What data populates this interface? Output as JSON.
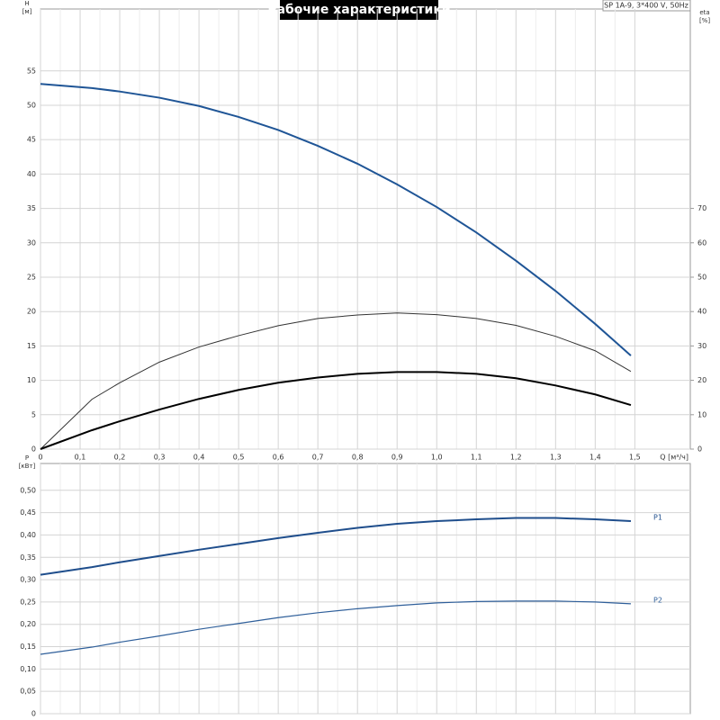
{
  "chart_data": [
    {
      "type": "line",
      "title": "Рабочие характеристики",
      "note": "SP 1A-9, 3*400 V, 50Hz",
      "ylabel": [
        "H",
        "[м]"
      ],
      "y2label": [
        "eta",
        "[%]"
      ],
      "xlabel": "Q [м³/ч]",
      "x": [
        0,
        0.13,
        0.2,
        0.3,
        0.4,
        0.5,
        0.6,
        0.7,
        0.8,
        0.9,
        1.0,
        1.1,
        1.2,
        1.3,
        1.4,
        1.49
      ],
      "xlim": [
        0,
        1.64
      ],
      "xticks": [
        0,
        {
          "value": 0.1,
          "label": "0,1"
        },
        {
          "value": 0.2,
          "label": "0,2"
        },
        {
          "value": 0.3,
          "label": "0,3"
        },
        {
          "value": 0.4,
          "label": "0,4"
        },
        {
          "value": 0.5,
          "label": "0,5"
        },
        {
          "value": 0.6,
          "label": "0,6"
        },
        {
          "value": 0.7,
          "label": "0,7"
        },
        {
          "value": 0.8,
          "label": "0,8"
        },
        {
          "value": 0.9,
          "label": "0,9"
        },
        {
          "value": 1.0,
          "label": "1,0"
        },
        {
          "value": 1.1,
          "label": "1,1"
        },
        {
          "value": 1.2,
          "label": "1,2"
        },
        {
          "value": 1.3,
          "label": "1,3"
        },
        {
          "value": 1.4,
          "label": "1,4"
        },
        {
          "value": 1.5,
          "label": "1,5"
        }
      ],
      "ylim": [
        0,
        64
      ],
      "yticks": [
        0,
        5,
        10,
        15,
        20,
        25,
        30,
        35,
        40,
        45,
        50,
        55
      ],
      "y2lim": [
        0,
        128
      ],
      "y2ticks": [
        0,
        10,
        20,
        30,
        40,
        50,
        60,
        70
      ],
      "grid": true,
      "series": [
        {
          "color": "#1f5596",
          "width": 2,
          "values": [
            53.1,
            52.5,
            52.0,
            51.1,
            49.9,
            48.3,
            46.4,
            44.1,
            41.5,
            38.5,
            35.2,
            31.5,
            27.4,
            23.0,
            18.2,
            13.6
          ]
        },
        {
          "color": "#333333",
          "width": 1,
          "axis": "y2",
          "values": [
            0,
            14.5,
            19.3,
            25.3,
            29.7,
            33.0,
            35.9,
            38.0,
            39.0,
            39.6,
            39.1,
            38.0,
            36.0,
            32.8,
            28.6,
            22.6
          ]
        },
        {
          "color": "#000000",
          "width": 2,
          "axis": "y2",
          "values": [
            0,
            5.5,
            8.1,
            11.5,
            14.6,
            17.2,
            19.3,
            20.8,
            21.9,
            22.4,
            22.4,
            21.9,
            20.6,
            18.5,
            15.9,
            12.8
          ]
        }
      ]
    },
    {
      "type": "line",
      "ylabel": [
        "P",
        "[кВт]"
      ],
      "x": [
        0,
        0.13,
        0.2,
        0.3,
        0.4,
        0.5,
        0.6,
        0.7,
        0.8,
        0.9,
        1.0,
        1.1,
        1.2,
        1.3,
        1.4,
        1.49
      ],
      "xlim": [
        0,
        1.64
      ],
      "xticks": [
        0,
        0.1,
        0.2,
        0.3,
        0.4,
        0.5,
        0.6,
        0.7,
        0.8,
        0.9,
        1.0,
        1.1,
        1.2,
        1.3,
        1.4,
        1.5
      ],
      "ylim": [
        0,
        0.56
      ],
      "yticks": [
        0,
        {
          "value": 0.05,
          "label": "0,05"
        },
        {
          "value": 0.1,
          "label": "0,10"
        },
        {
          "value": 0.15,
          "label": "0,15"
        },
        {
          "value": 0.2,
          "label": "0,20"
        },
        {
          "value": 0.25,
          "label": "0,25"
        },
        {
          "value": 0.3,
          "label": "0,30"
        },
        {
          "value": 0.35,
          "label": "0,35"
        },
        {
          "value": 0.4,
          "label": "0,40"
        },
        {
          "value": 0.45,
          "label": "0,45"
        },
        {
          "value": 0.5,
          "label": "0,50"
        }
      ],
      "grid": true,
      "series": [
        {
          "name": "P1",
          "color": "#1f4e8c",
          "width": 2,
          "values": [
            0.311,
            0.328,
            0.339,
            0.353,
            0.367,
            0.38,
            0.393,
            0.405,
            0.416,
            0.425,
            0.431,
            0.435,
            0.438,
            0.438,
            0.435,
            0.431
          ]
        },
        {
          "name": "P2",
          "color": "#2f5f9a",
          "width": 1.2,
          "values": [
            0.133,
            0.149,
            0.16,
            0.174,
            0.189,
            0.202,
            0.215,
            0.226,
            0.235,
            0.242,
            0.248,
            0.251,
            0.252,
            0.252,
            0.25,
            0.246
          ]
        }
      ]
    }
  ]
}
